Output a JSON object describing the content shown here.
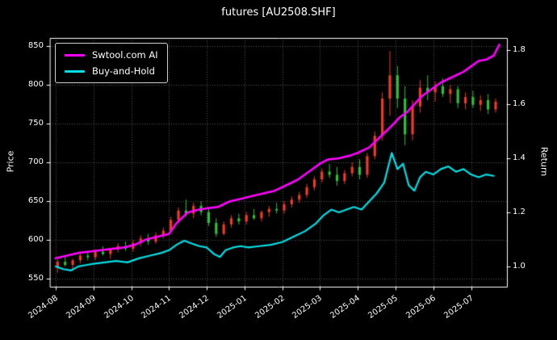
{
  "chart_data": {
    "type": "candlestick",
    "title": "futures [AU2508.SHF]",
    "ylabel_left": "Price",
    "ylabel_right": "Return",
    "grid": true,
    "legend_position": "upper-left",
    "x_tick_labels": [
      "2024-08",
      "2024-09",
      "2024-10",
      "2024-11",
      "2024-12",
      "2025-01",
      "2025-02",
      "2025-03",
      "2025-04",
      "2025-05",
      "2025-06",
      "2025-07"
    ],
    "x_tick_positions": [
      0,
      1,
      2,
      3,
      4,
      5,
      6,
      7,
      8,
      9,
      10,
      11
    ],
    "xlim": [
      -0.15,
      11.95
    ],
    "price_axis": {
      "lim": [
        540,
        860
      ],
      "ticks": [
        550,
        600,
        650,
        700,
        750,
        800,
        850
      ]
    },
    "return_axis": {
      "lim": [
        0.925,
        1.845
      ],
      "ticks": [
        1.0,
        1.2,
        1.4,
        1.6,
        1.8
      ]
    },
    "colors": {
      "background": "#000000",
      "text": "#ffffff",
      "grid": "#555555",
      "up": "#ef3b24",
      "down": "#2fbf3a",
      "ai_line": "#ff00ff",
      "bh_line": "#00e0e6"
    },
    "candles": [
      [
        0.05,
        566,
        575,
        558,
        572
      ],
      [
        0.25,
        572,
        580,
        566,
        568
      ],
      [
        0.45,
        568,
        576,
        560,
        574
      ],
      [
        0.65,
        574,
        584,
        570,
        580
      ],
      [
        0.85,
        580,
        586,
        574,
        578
      ],
      [
        1.05,
        578,
        588,
        574,
        585
      ],
      [
        1.25,
        585,
        592,
        580,
        582
      ],
      [
        1.45,
        582,
        590,
        576,
        588
      ],
      [
        1.65,
        588,
        596,
        584,
        592
      ],
      [
        1.85,
        592,
        598,
        586,
        589
      ],
      [
        2.05,
        589,
        600,
        585,
        596
      ],
      [
        2.25,
        596,
        606,
        592,
        602
      ],
      [
        2.45,
        602,
        608,
        594,
        598
      ],
      [
        2.65,
        598,
        610,
        595,
        606
      ],
      [
        2.85,
        606,
        616,
        602,
        612
      ],
      [
        3.05,
        612,
        630,
        610,
        626
      ],
      [
        3.25,
        626,
        642,
        622,
        638
      ],
      [
        3.45,
        638,
        652,
        630,
        634
      ],
      [
        3.65,
        634,
        648,
        628,
        644
      ],
      [
        3.85,
        644,
        650,
        632,
        636
      ],
      [
        4.05,
        636,
        640,
        618,
        622
      ],
      [
        4.25,
        622,
        628,
        604,
        608
      ],
      [
        4.45,
        608,
        624,
        606,
        620
      ],
      [
        4.65,
        620,
        632,
        616,
        628
      ],
      [
        4.85,
        628,
        634,
        620,
        624
      ],
      [
        5.05,
        624,
        636,
        620,
        632
      ],
      [
        5.25,
        632,
        640,
        626,
        628
      ],
      [
        5.45,
        628,
        638,
        624,
        636
      ],
      [
        5.65,
        636,
        644,
        630,
        640
      ],
      [
        5.85,
        640,
        648,
        634,
        638
      ],
      [
        6.05,
        638,
        650,
        634,
        646
      ],
      [
        6.25,
        646,
        656,
        642,
        652
      ],
      [
        6.45,
        652,
        662,
        648,
        658
      ],
      [
        6.65,
        658,
        672,
        654,
        668
      ],
      [
        6.85,
        668,
        682,
        664,
        678
      ],
      [
        7.05,
        678,
        692,
        674,
        688
      ],
      [
        7.25,
        688,
        698,
        680,
        684
      ],
      [
        7.45,
        684,
        694,
        670,
        676
      ],
      [
        7.65,
        676,
        690,
        672,
        686
      ],
      [
        7.85,
        686,
        700,
        682,
        694
      ],
      [
        8.05,
        694,
        704,
        678,
        684
      ],
      [
        8.25,
        684,
        712,
        680,
        708
      ],
      [
        8.45,
        708,
        740,
        704,
        734
      ],
      [
        8.65,
        734,
        790,
        728,
        782
      ],
      [
        8.85,
        782,
        843,
        760,
        812
      ],
      [
        9.05,
        812,
        824,
        770,
        782
      ],
      [
        9.25,
        782,
        798,
        722,
        736
      ],
      [
        9.45,
        736,
        780,
        728,
        772
      ],
      [
        9.65,
        772,
        806,
        764,
        796
      ],
      [
        9.85,
        796,
        812,
        780,
        790
      ],
      [
        10.05,
        790,
        804,
        778,
        798
      ],
      [
        10.25,
        798,
        808,
        784,
        788
      ],
      [
        10.45,
        788,
        800,
        776,
        794
      ],
      [
        10.65,
        794,
        798,
        770,
        776
      ],
      [
        10.85,
        776,
        790,
        768,
        784
      ],
      [
        11.05,
        784,
        792,
        770,
        774
      ],
      [
        11.25,
        774,
        786,
        766,
        780
      ],
      [
        11.45,
        780,
        788,
        762,
        768
      ],
      [
        11.65,
        768,
        782,
        764,
        778
      ]
    ],
    "series": [
      {
        "name": "Swtool.com AI",
        "color_key": "ai_line",
        "axis": "return",
        "width": 2.6,
        "points": [
          [
            0.0,
            1.03
          ],
          [
            0.3,
            1.04
          ],
          [
            0.6,
            1.05
          ],
          [
            0.9,
            1.055
          ],
          [
            1.2,
            1.06
          ],
          [
            1.5,
            1.065
          ],
          [
            1.8,
            1.07
          ],
          [
            2.1,
            1.08
          ],
          [
            2.4,
            1.1
          ],
          [
            2.7,
            1.11
          ],
          [
            3.0,
            1.12
          ],
          [
            3.2,
            1.16
          ],
          [
            3.5,
            1.2
          ],
          [
            3.8,
            1.21
          ],
          [
            4.0,
            1.215
          ],
          [
            4.3,
            1.22
          ],
          [
            4.6,
            1.24
          ],
          [
            4.9,
            1.25
          ],
          [
            5.2,
            1.26
          ],
          [
            5.5,
            1.27
          ],
          [
            5.8,
            1.28
          ],
          [
            6.1,
            1.3
          ],
          [
            6.4,
            1.32
          ],
          [
            6.7,
            1.35
          ],
          [
            7.0,
            1.38
          ],
          [
            7.2,
            1.395
          ],
          [
            7.5,
            1.4
          ],
          [
            7.8,
            1.41
          ],
          [
            8.0,
            1.42
          ],
          [
            8.3,
            1.44
          ],
          [
            8.6,
            1.48
          ],
          [
            8.9,
            1.52
          ],
          [
            9.1,
            1.55
          ],
          [
            9.3,
            1.57
          ],
          [
            9.5,
            1.6
          ],
          [
            9.7,
            1.63
          ],
          [
            9.9,
            1.65
          ],
          [
            10.2,
            1.68
          ],
          [
            10.5,
            1.7
          ],
          [
            10.8,
            1.72
          ],
          [
            11.0,
            1.74
          ],
          [
            11.2,
            1.76
          ],
          [
            11.4,
            1.765
          ],
          [
            11.6,
            1.78
          ],
          [
            11.75,
            1.82
          ]
        ]
      },
      {
        "name": "Buy-and-Hold",
        "color_key": "bh_line",
        "axis": "return",
        "width": 2.2,
        "points": [
          [
            0.0,
            1.0
          ],
          [
            0.2,
            0.99
          ],
          [
            0.4,
            0.985
          ],
          [
            0.6,
            1.0
          ],
          [
            0.8,
            1.005
          ],
          [
            1.0,
            1.01
          ],
          [
            1.3,
            1.015
          ],
          [
            1.6,
            1.02
          ],
          [
            1.9,
            1.015
          ],
          [
            2.2,
            1.03
          ],
          [
            2.5,
            1.04
          ],
          [
            2.8,
            1.05
          ],
          [
            3.0,
            1.06
          ],
          [
            3.2,
            1.08
          ],
          [
            3.4,
            1.095
          ],
          [
            3.6,
            1.085
          ],
          [
            3.8,
            1.075
          ],
          [
            4.0,
            1.07
          ],
          [
            4.2,
            1.045
          ],
          [
            4.35,
            1.035
          ],
          [
            4.5,
            1.06
          ],
          [
            4.7,
            1.07
          ],
          [
            4.9,
            1.075
          ],
          [
            5.1,
            1.07
          ],
          [
            5.4,
            1.075
          ],
          [
            5.7,
            1.08
          ],
          [
            6.0,
            1.09
          ],
          [
            6.3,
            1.11
          ],
          [
            6.6,
            1.13
          ],
          [
            6.9,
            1.16
          ],
          [
            7.1,
            1.19
          ],
          [
            7.3,
            1.21
          ],
          [
            7.5,
            1.2
          ],
          [
            7.7,
            1.21
          ],
          [
            7.9,
            1.22
          ],
          [
            8.1,
            1.21
          ],
          [
            8.3,
            1.24
          ],
          [
            8.5,
            1.27
          ],
          [
            8.7,
            1.31
          ],
          [
            8.9,
            1.42
          ],
          [
            9.05,
            1.36
          ],
          [
            9.2,
            1.38
          ],
          [
            9.35,
            1.3
          ],
          [
            9.5,
            1.28
          ],
          [
            9.65,
            1.33
          ],
          [
            9.8,
            1.35
          ],
          [
            10.0,
            1.34
          ],
          [
            10.2,
            1.36
          ],
          [
            10.4,
            1.37
          ],
          [
            10.6,
            1.35
          ],
          [
            10.8,
            1.36
          ],
          [
            11.0,
            1.34
          ],
          [
            11.2,
            1.33
          ],
          [
            11.4,
            1.34
          ],
          [
            11.6,
            1.335
          ]
        ]
      }
    ]
  }
}
